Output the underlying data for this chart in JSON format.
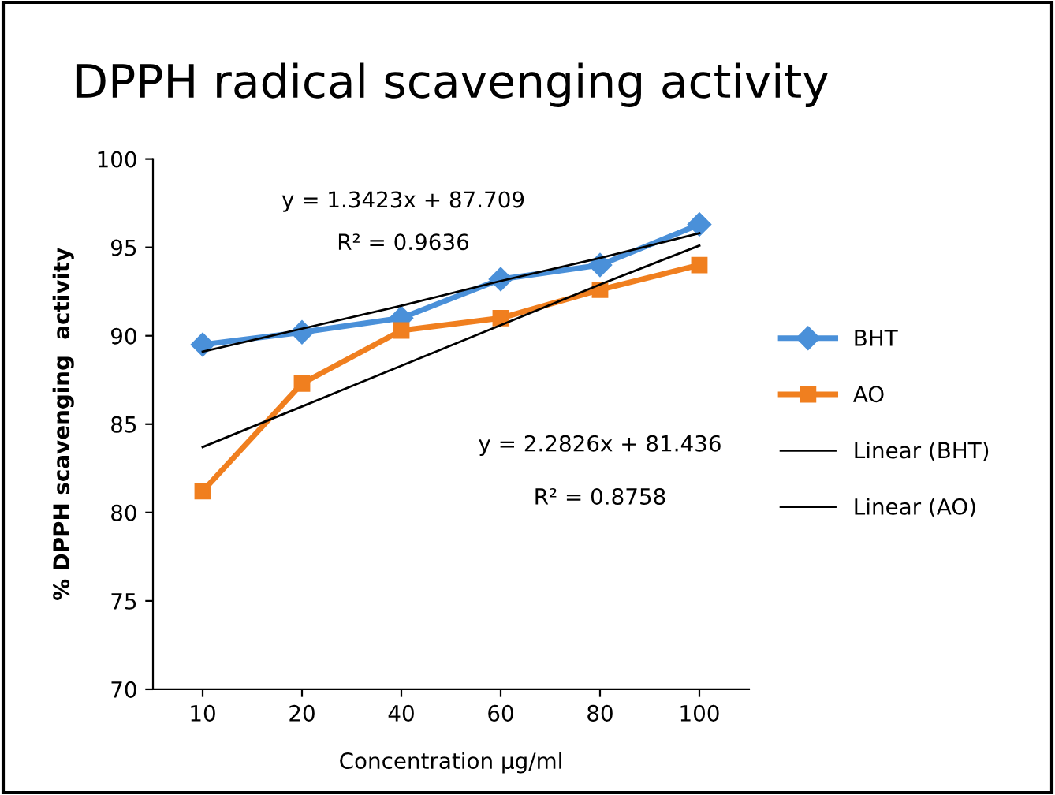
{
  "chart_data": {
    "type": "line",
    "title": "DPPH radical scavenging activity",
    "xlabel": "Concentration μg/ml",
    "ylabel": "% DPPH scavenging  activity",
    "categories": [
      "10",
      "20",
      "40",
      "60",
      "80",
      "100"
    ],
    "ylim": [
      70,
      100
    ],
    "yticks": [
      70,
      75,
      80,
      85,
      90,
      95,
      100
    ],
    "grid": false,
    "legend": "right",
    "series": [
      {
        "name": "BHT",
        "color": "#4a90d9",
        "marker": "diamond",
        "values": [
          89.5,
          90.2,
          91.0,
          93.2,
          94.0,
          96.3
        ]
      },
      {
        "name": "AO",
        "color": "#f07f1f",
        "marker": "square",
        "values": [
          81.2,
          87.3,
          90.3,
          91.0,
          92.6,
          94.0
        ]
      },
      {
        "name": "Linear (BHT)",
        "color": "#000000",
        "marker": "none",
        "values": [
          89.1,
          90.4,
          91.7,
          93.1,
          94.4,
          95.8
        ]
      },
      {
        "name": "Linear (AO)",
        "color": "#000000",
        "marker": "none",
        "values": [
          83.7,
          86.0,
          88.3,
          90.6,
          92.9,
          95.1
        ]
      }
    ],
    "annotations": [
      "y = 1.3423x + 87.709",
      "R² = 0.9636",
      "y = 2.2826x + 81.436",
      "R² = 0.8758"
    ]
  }
}
